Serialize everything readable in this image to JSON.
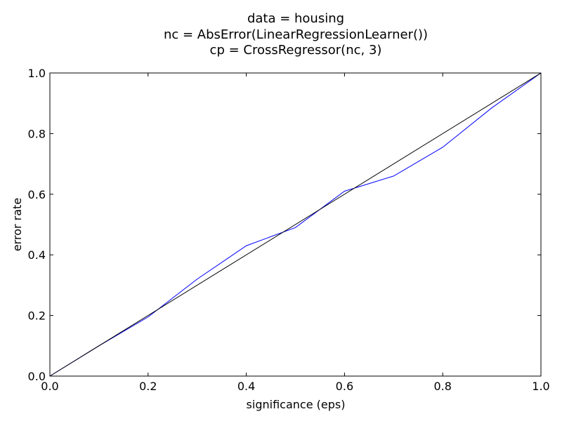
{
  "chart_data": {
    "type": "line",
    "title_lines": [
      "data = housing",
      "nc = AbsError(LinearRegressionLearner())",
      "cp = CrossRegressor(nc, 3)"
    ],
    "xlabel": "significance (eps)",
    "ylabel": "error rate",
    "xlim": [
      0.0,
      1.0
    ],
    "ylim": [
      0.0,
      1.0
    ],
    "xticks": [
      0.0,
      0.2,
      0.4,
      0.6,
      0.8,
      1.0
    ],
    "yticks": [
      0.0,
      0.2,
      0.4,
      0.6,
      0.8,
      1.0
    ],
    "xtick_labels": [
      "0.0",
      "0.2",
      "0.4",
      "0.6",
      "0.8",
      "1.0"
    ],
    "ytick_labels": [
      "0.0",
      "0.2",
      "0.4",
      "0.6",
      "0.8",
      "1.0"
    ],
    "grid": false,
    "series": [
      {
        "color": "#0000ff",
        "x": [
          0.0,
          0.1,
          0.2,
          0.3,
          0.4,
          0.5,
          0.6,
          0.7,
          0.8,
          0.9,
          1.0
        ],
        "y": [
          0.0,
          0.1,
          0.195,
          0.32,
          0.43,
          0.49,
          0.61,
          0.66,
          0.755,
          0.885,
          1.0
        ]
      },
      {
        "color": "#000000",
        "x": [
          0.0,
          1.0
        ],
        "y": [
          0.0,
          1.0
        ]
      }
    ]
  }
}
